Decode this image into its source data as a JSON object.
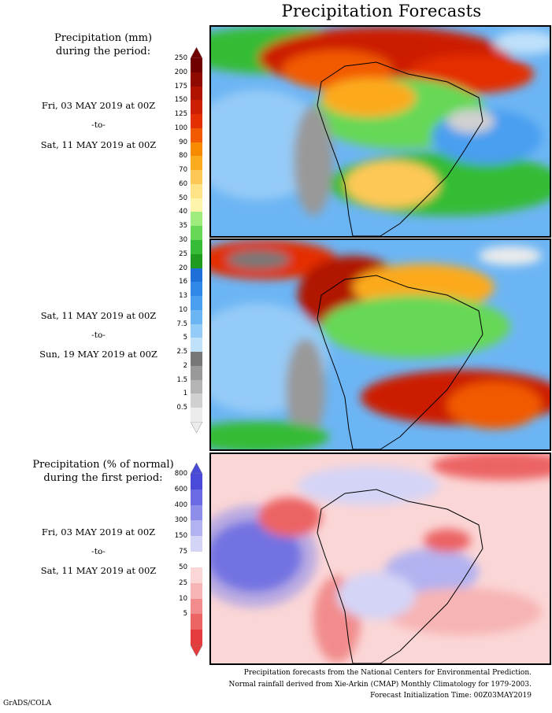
{
  "title": "Precipitation Forecasts",
  "section1": {
    "heading_line1": "Precipitation (mm)",
    "heading_line2": "during the period:",
    "period1": {
      "start": "Fri, 03 MAY 2019 at 00Z",
      "to": "-to-",
      "end": "Sat, 11 MAY 2019 at 00Z"
    },
    "period2": {
      "start": "Sat, 11 MAY 2019 at 00Z",
      "to": "-to-",
      "end": "Sun, 19 MAY 2019 at 00Z"
    },
    "colorbar_levels": [
      "250",
      "200",
      "175",
      "150",
      "125",
      "100",
      "90",
      "80",
      "70",
      "60",
      "50",
      "40",
      "35",
      "30",
      "25",
      "20",
      "16",
      "13",
      "10",
      "7.5",
      "5",
      "2.5",
      "2",
      "1.5",
      "1",
      "0.5"
    ],
    "colorbar_colors": [
      "#700000",
      "#8f0a00",
      "#b01400",
      "#cc1e00",
      "#e42f00",
      "#f25a00",
      "#f88a00",
      "#fcaa1e",
      "#fec856",
      "#ffe386",
      "#fef4aa",
      "#9eec7e",
      "#66d856",
      "#36bc36",
      "#1f9b20",
      "#1f6fd8",
      "#2f87e8",
      "#4a9ff0",
      "#6cb5f4",
      "#95cbf7",
      "#bfe1fa",
      "#777777",
      "#999999",
      "#b4b4b4",
      "#d0d0d0",
      "#ececec"
    ]
  },
  "section2": {
    "heading_line1": "Precipitation (% of normal)",
    "heading_line2": "during the first period:",
    "period": {
      "start": "Fri, 03 MAY 2019 at 00Z",
      "to": "-to-",
      "end": "Sat, 11 MAY 2019 at 00Z"
    },
    "colorbar_levels": [
      "800",
      "600",
      "400",
      "300",
      "150",
      "75",
      "50",
      "25",
      "10",
      "5"
    ],
    "colorbar_colors": [
      "#4a4ad8",
      "#6a6ae2",
      "#8e8eea",
      "#b2b2f0",
      "#d4d4f6",
      "#ffffff",
      "#fbd6d6",
      "#f7b4b4",
      "#f28c8c",
      "#ec6464",
      "#e43c3c"
    ]
  },
  "footer": {
    "line1": "Precipitation forecasts from the National Centers for Environmental Prediction.",
    "line2": "Normal rainfall derived from Xie-Arkin (CMAP) Monthly Climatology for 1979-2003.",
    "line3": "Forecast Initialization Time: 00Z03MAY2019"
  },
  "credit": "GrADS/COLA"
}
